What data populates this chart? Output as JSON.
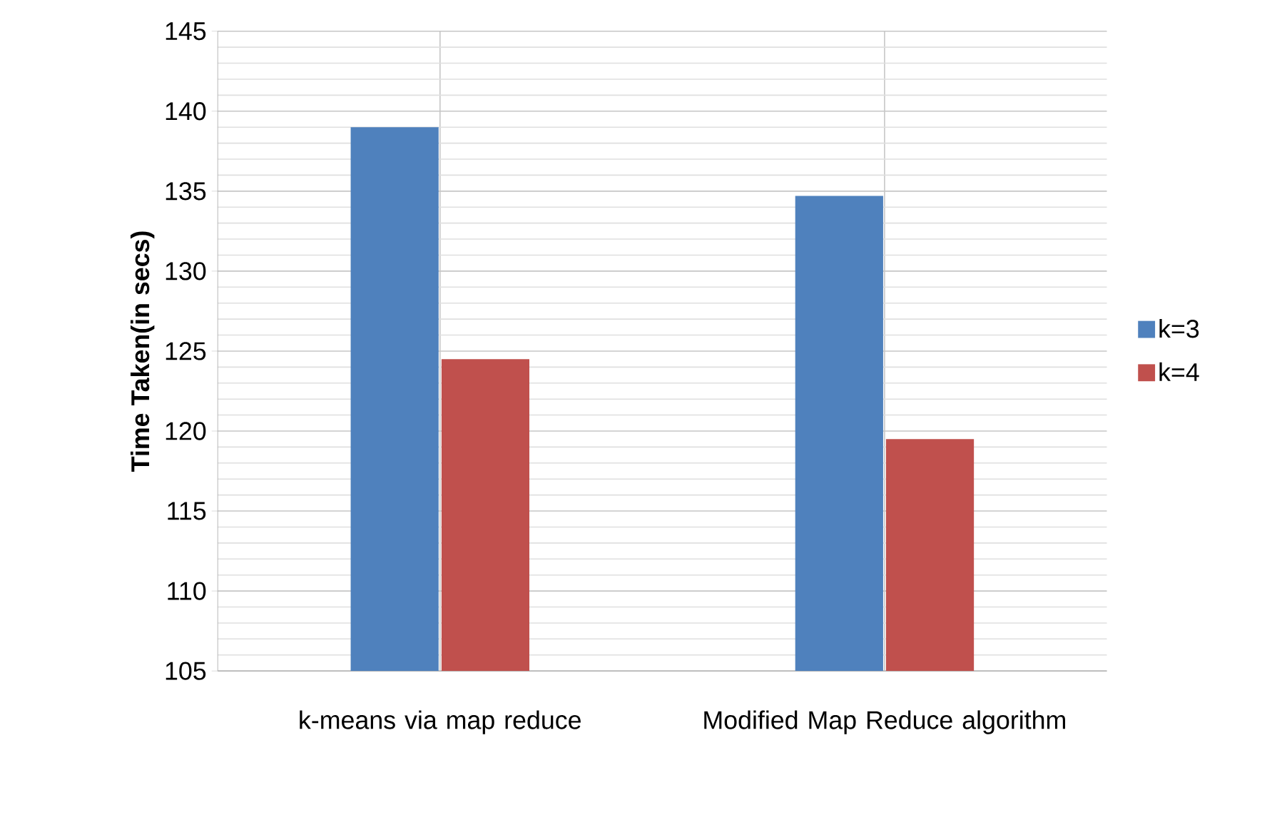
{
  "chart_data": {
    "type": "bar",
    "ylabel": "Time Taken(in secs)",
    "categories": [
      "k-means via map reduce",
      "Modified Map Reduce algorithm"
    ],
    "series": [
      {
        "name": "k=3",
        "color": "#4f81bd",
        "values": [
          139,
          134.7
        ]
      },
      {
        "name": "k=4",
        "color": "#c0504d",
        "values": [
          124.5,
          119.5
        ]
      }
    ],
    "ylim": [
      105,
      145
    ],
    "yticks": [
      105,
      110,
      115,
      120,
      125,
      130,
      135,
      140,
      145
    ],
    "grid": true,
    "legend": "right"
  }
}
